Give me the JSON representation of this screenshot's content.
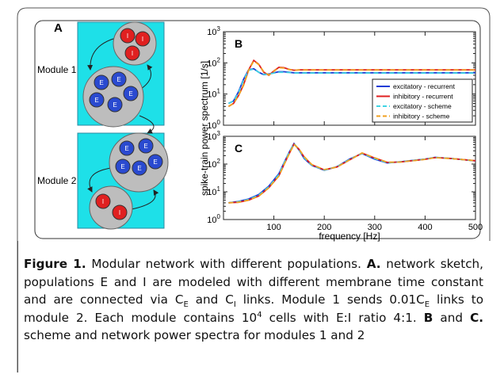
{
  "figure": {
    "panel_a": {
      "label": "A",
      "modules": [
        "Module 1",
        "Module 2"
      ],
      "populations": [
        [
          "I",
          "I",
          "I"
        ],
        [
          "E",
          "E",
          "E",
          "E",
          "E"
        ],
        [
          "E",
          "E",
          "E",
          "E",
          "E"
        ],
        [
          "I",
          "I"
        ]
      ]
    },
    "ylabel": "spike-train power spectrum [1/s]",
    "caption": [
      "Figure 1.",
      " Modular network with different populations. ",
      "A.",
      " network sketch, populations E and I are modeled with different membrane time constant and are connected via C",
      "E",
      " and C",
      "I",
      " links. Module 1 sends 0.01C",
      "E",
      " links to module 2. Each module contains 10",
      "4",
      " cells with E:I ratio 4:1. ",
      "B",
      " and ",
      "C.",
      " scheme and network power spectra for modules 1 and 2"
    ]
  },
  "chart_data": [
    {
      "type": "line",
      "panel_label": "B",
      "log_y": true,
      "legend": "lower right",
      "show_xtick_labels": false,
      "x": [
        10,
        20,
        30,
        40,
        50,
        60,
        70,
        80,
        90,
        100,
        110,
        120,
        130,
        140,
        150,
        160,
        180,
        200,
        225,
        250,
        275,
        300,
        325,
        350,
        400,
        450,
        500
      ],
      "xlim": [
        0,
        500
      ],
      "xticks": [
        100,
        200,
        300,
        400,
        500
      ],
      "ylim": [
        1,
        1000
      ],
      "yticks": [
        {
          "value": 1,
          "label": "10",
          "exponent": "0"
        },
        {
          "value": 10,
          "label": "10",
          "exponent": "1"
        },
        {
          "value": 100,
          "label": "10",
          "exponent": "2"
        },
        {
          "value": 1000,
          "label": "10",
          "exponent": "3"
        }
      ],
      "series": [
        {
          "name": "excitatory - recurrent",
          "color": "#1a3cd6",
          "dash": false,
          "values": [
            5,
            6,
            12,
            30,
            60,
            65,
            50,
            42,
            44,
            48,
            52,
            52,
            50,
            48,
            48,
            48,
            48,
            48,
            48,
            48,
            48,
            48,
            48,
            48,
            48,
            48,
            48
          ]
        },
        {
          "name": "inhibitory - recurrent",
          "color": "#e02020",
          "dash": false,
          "values": [
            4,
            5,
            9,
            20,
            60,
            120,
            90,
            50,
            40,
            55,
            72,
            70,
            62,
            58,
            60,
            60,
            60,
            60,
            60,
            60,
            60,
            60,
            60,
            60,
            60,
            60,
            60
          ]
        },
        {
          "name": "excitatory - scheme",
          "color": "#40d4e4",
          "dash": true,
          "values": [
            5,
            6,
            11,
            28,
            58,
            63,
            50,
            43,
            44,
            47,
            50,
            50,
            49,
            47,
            47,
            47,
            47,
            47,
            47,
            47,
            47,
            47,
            47,
            47,
            47,
            47,
            47
          ]
        },
        {
          "name": "inhibitory - scheme",
          "color": "#f0a020",
          "dash": true,
          "values": [
            4,
            5,
            9,
            19,
            58,
            115,
            88,
            52,
            41,
            54,
            70,
            68,
            61,
            58,
            59,
            59,
            59,
            59,
            59,
            59,
            59,
            59,
            59,
            59,
            59,
            59,
            59
          ]
        }
      ]
    },
    {
      "type": "line",
      "panel_label": "C",
      "log_y": true,
      "show_xtick_labels": true,
      "xlabel": "frequency [Hz]",
      "x": [
        10,
        30,
        50,
        70,
        90,
        110,
        120,
        130,
        140,
        150,
        160,
        175,
        200,
        225,
        250,
        275,
        300,
        325,
        350,
        400,
        420,
        450,
        500
      ],
      "xlim": [
        0,
        500
      ],
      "xticks": [
        100,
        200,
        300,
        400,
        500
      ],
      "ylim": [
        1,
        1000
      ],
      "yticks": [
        {
          "value": 1,
          "label": "10",
          "exponent": "0"
        },
        {
          "value": 10,
          "label": "10",
          "exponent": "1"
        },
        {
          "value": 100,
          "label": "10",
          "exponent": "2"
        },
        {
          "value": 1000,
          "label": "10",
          "exponent": "3"
        }
      ],
      "series": [
        {
          "color": "#1a3cd6",
          "dash": false,
          "values": [
            4,
            4.5,
            5.5,
            8,
            16,
            45,
            110,
            260,
            550,
            320,
            160,
            90,
            60,
            80,
            150,
            240,
            150,
            110,
            120,
            150,
            175,
            160,
            130
          ]
        },
        {
          "color": "#e02020",
          "dash": false,
          "values": [
            4,
            4.2,
            5,
            7,
            14,
            38,
            95,
            230,
            520,
            340,
            180,
            95,
            62,
            78,
            140,
            250,
            165,
            115,
            118,
            148,
            170,
            160,
            132
          ]
        },
        {
          "color": "#40d4e4",
          "dash": true,
          "values": [
            4,
            4.4,
            5.3,
            7.6,
            15,
            42,
            105,
            250,
            540,
            330,
            170,
            92,
            61,
            79,
            145,
            245,
            158,
            112,
            119,
            149,
            172,
            160,
            131
          ]
        },
        {
          "color": "#f0a020",
          "dash": true,
          "values": [
            4,
            4.2,
            5,
            7,
            14,
            37,
            93,
            225,
            515,
            345,
            185,
            97,
            63,
            78,
            140,
            252,
            168,
            116,
            118,
            147,
            170,
            159,
            132
          ]
        }
      ]
    }
  ]
}
